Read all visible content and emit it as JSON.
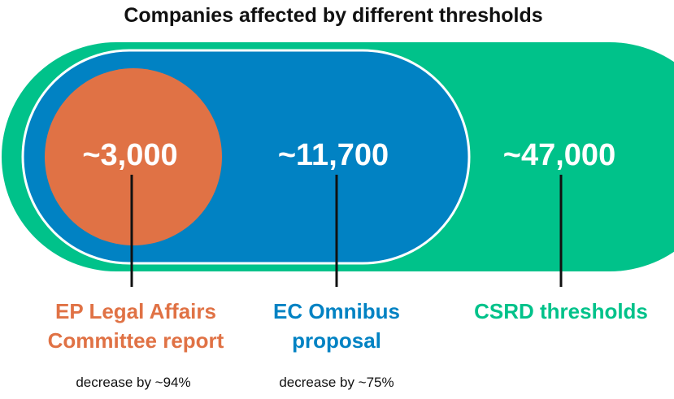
{
  "title": "Companies affected by different thresholds",
  "colors": {
    "csrd": "#00C28A",
    "omnibus": "#0182C3",
    "ep": "#E07245",
    "outline": "#ffffff",
    "leader": "#111111"
  },
  "groups": {
    "csrd": {
      "value": "~47,000",
      "label_line1": "CSRD thresholds"
    },
    "omnibus": {
      "value": "~11,700",
      "label_line1": "EC Omnibus",
      "label_line2": "proposal",
      "note": "decrease by ~75%"
    },
    "ep": {
      "value": "~3,000",
      "label_line1": "EP Legal Affairs",
      "label_line2": "Committee report",
      "note": "decrease by ~94%"
    }
  }
}
